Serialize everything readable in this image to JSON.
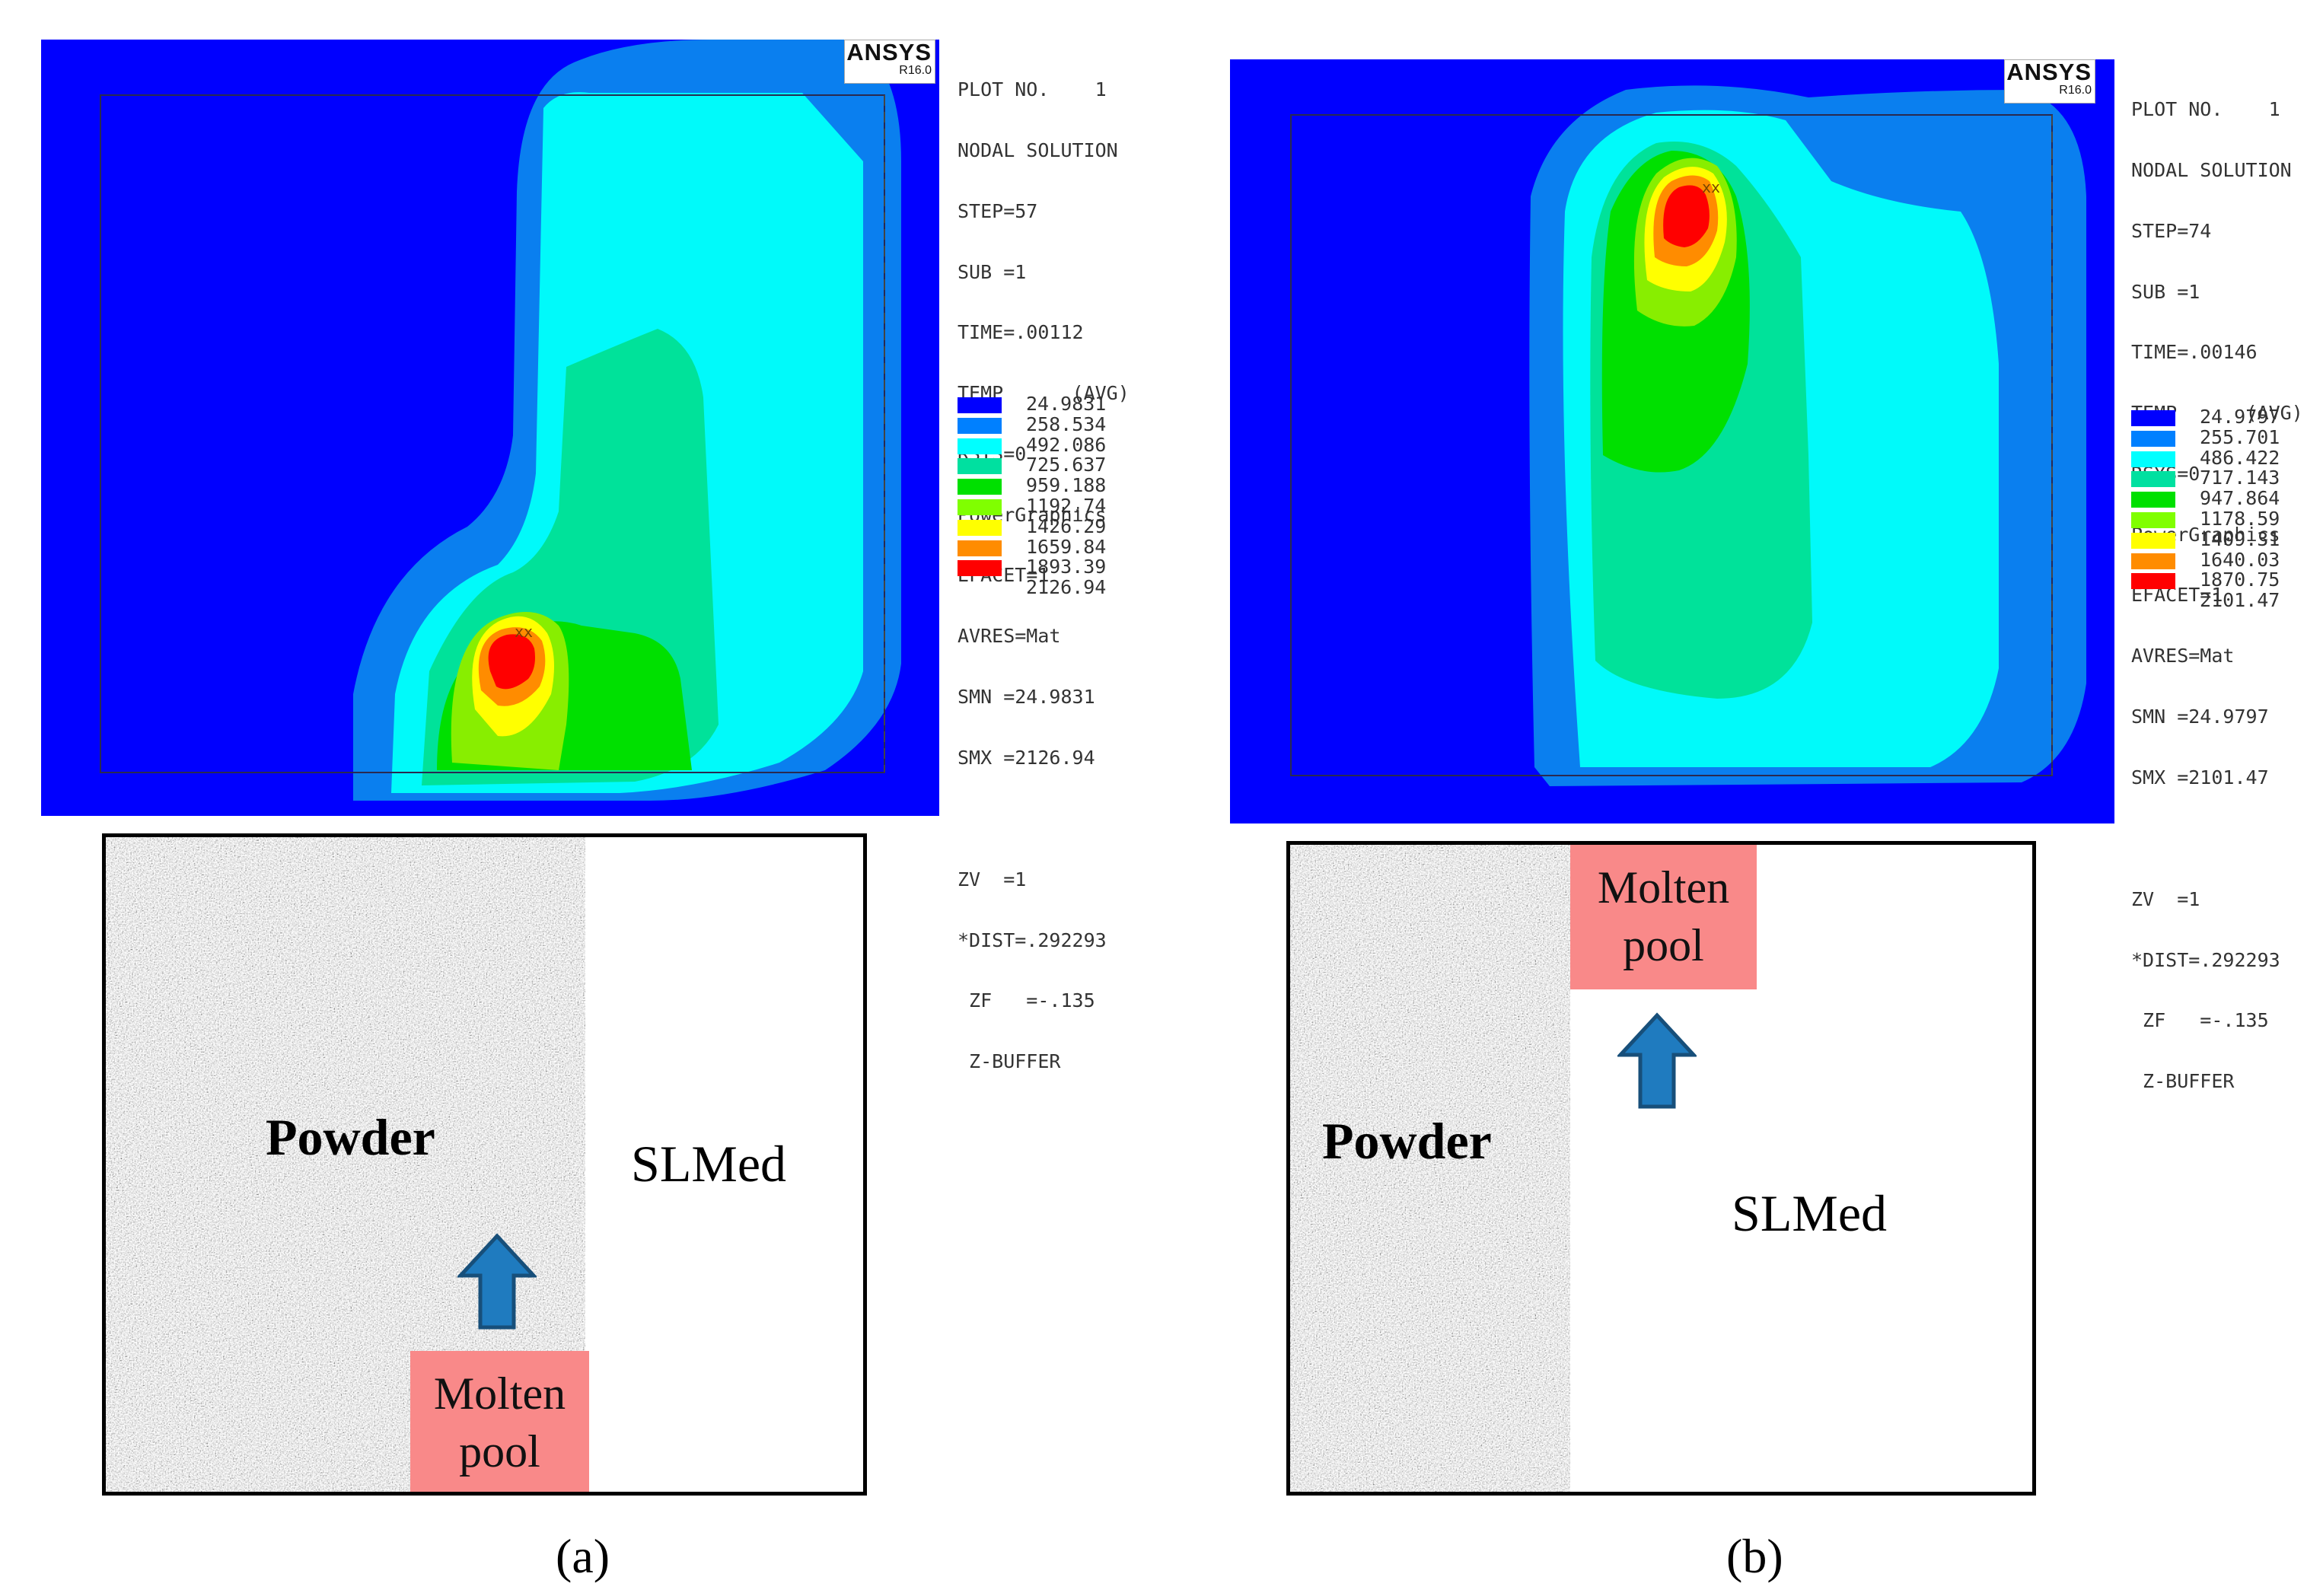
{
  "figure": {
    "panel_a": {
      "software_logo": "ANSYS",
      "software_version": "R16.0",
      "info_lines": [
        "PLOT NO.    1",
        "NODAL SOLUTION",
        "STEP=57",
        "SUB =1",
        "TIME=.00112",
        "TEMP      (AVG)",
        "RSYS=0",
        "PowerGraphics",
        "EFACET=1",
        "AVRES=Mat",
        "SMN =24.9831",
        "SMX =2126.94"
      ],
      "view_lines": [
        "ZV  =1",
        "*DIST=.292293",
        " ZF   =-.135",
        " Z-BUFFER"
      ],
      "legend_values": [
        "24.9831",
        "258.534",
        "492.086",
        "725.637",
        "959.188",
        "1192.74",
        "1426.29",
        "1659.84",
        "1893.39",
        "2126.94"
      ],
      "powder_label": "Powder",
      "slmed_label": "SLMed",
      "pool_line1": "Molten",
      "pool_line2": "pool",
      "caption": "(a)"
    },
    "panel_b": {
      "software_logo": "ANSYS",
      "software_version": "R16.0",
      "info_lines": [
        "PLOT NO.    1",
        "NODAL SOLUTION",
        "STEP=74",
        "SUB =1",
        "TIME=.00146",
        "TEMP      (AVG)",
        "RSYS=0",
        "PowerGraphics",
        "EFACET=1",
        "AVRES=Mat",
        "SMN =24.9797",
        "SMX =2101.47"
      ],
      "view_lines": [
        "ZV  =1",
        "*DIST=.292293",
        " ZF   =-.135",
        " Z-BUFFER"
      ],
      "legend_values": [
        "24.9797",
        "255.701",
        "486.422",
        "717.143",
        "947.864",
        "1178.59",
        "1409.31",
        "1640.03",
        "1870.75",
        "2101.47"
      ],
      "powder_label": "Powder",
      "slmed_label": "SLMed",
      "pool_line1": "Molten",
      "pool_line2": "pool",
      "caption": "(b)"
    },
    "legend_colors": [
      "#0000ff",
      "#0080ff",
      "#00ffff",
      "#00e0a0",
      "#00e000",
      "#80ff00",
      "#ffff00",
      "#ff8c00",
      "#ff0000",
      "#ff0000"
    ]
  }
}
